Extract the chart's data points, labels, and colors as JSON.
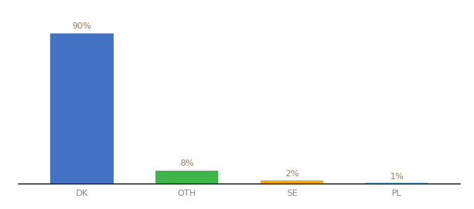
{
  "categories": [
    "DK",
    "OTH",
    "SE",
    "PL"
  ],
  "values": [
    90,
    8,
    2,
    1
  ],
  "bar_colors": [
    "#4472c4",
    "#3cb54a",
    "#ffa500",
    "#87ceeb"
  ],
  "label_texts": [
    "90%",
    "8%",
    "2%",
    "1%"
  ],
  "background_color": "#ffffff",
  "ylim": [
    0,
    100
  ],
  "bar_width": 0.6,
  "label_color": "#a08060",
  "label_fontsize": 9,
  "tick_fontsize": 9,
  "tick_color": "#888888"
}
